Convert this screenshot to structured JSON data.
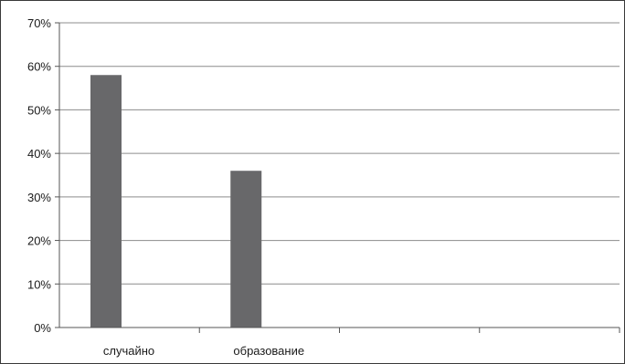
{
  "chart_data": {
    "type": "bar",
    "categories": [
      "случайно",
      "образование",
      "",
      ""
    ],
    "values": [
      58,
      36,
      null,
      null
    ],
    "ylim": [
      0,
      70
    ],
    "yticks": [
      0,
      10,
      20,
      30,
      40,
      50,
      60,
      70
    ],
    "ytick_labels": [
      "0%",
      "10%",
      "20%",
      "30%",
      "40%",
      "50%",
      "60%",
      "70%"
    ],
    "grid": true,
    "legend": "none",
    "bar_color": "#68686a",
    "grid_color": "#8c8c8c"
  }
}
